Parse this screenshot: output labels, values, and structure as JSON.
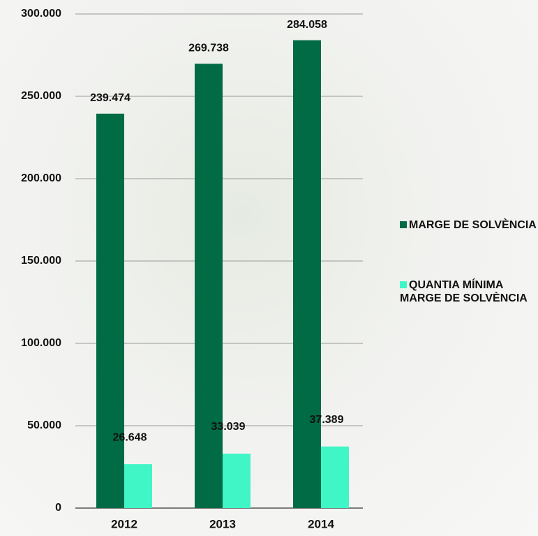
{
  "chart_data": {
    "type": "bar",
    "categories": [
      "2012",
      "2013",
      "2014"
    ],
    "series": [
      {
        "name": "MARGE DE SOLVÈNCIA",
        "color": "#006b45",
        "values": [
          239474,
          269738,
          284058
        ],
        "value_labels": [
          "239.474",
          "269.738",
          "284.058"
        ]
      },
      {
        "name": "QUANTIA MÍNIMA MARGE DE SOLVÈNCIA",
        "color": "#40f5c6",
        "values": [
          26648,
          33039,
          37389
        ],
        "value_labels": [
          "26.648",
          "33.039",
          "37.389"
        ]
      }
    ],
    "ylim": [
      0,
      300000
    ],
    "yticks": [
      0,
      {
        "value": 50000,
        "label": "50.000"
      },
      {
        "value": 100000,
        "label": "100.000"
      },
      {
        "value": 150000,
        "label": "150.000"
      },
      {
        "value": 200000,
        "label": "200.000"
      },
      {
        "value": 250000,
        "label": "250.000"
      },
      {
        "value": 300000,
        "label": "300.000"
      }
    ],
    "grid": true
  }
}
